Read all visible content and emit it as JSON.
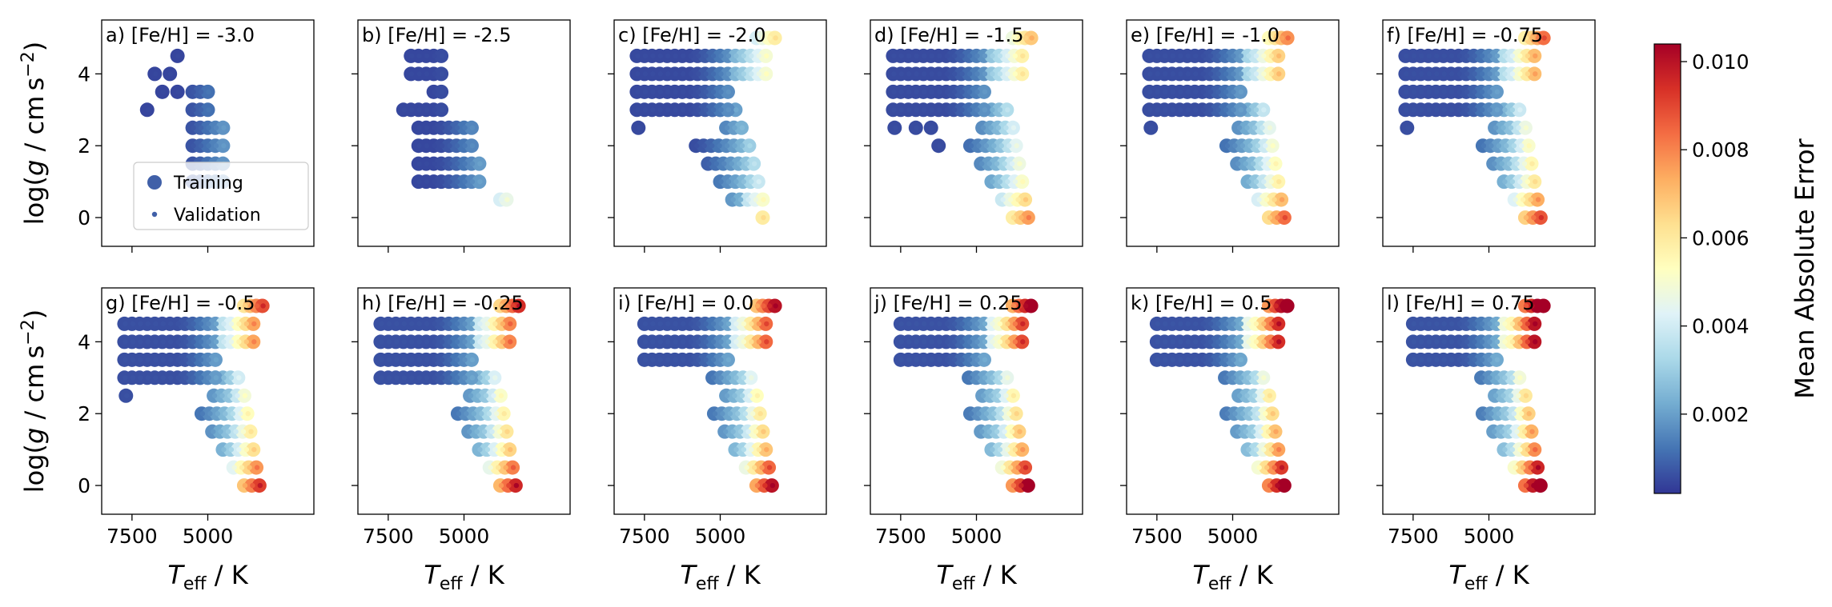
{
  "chart_data": {
    "type": "scatter",
    "xlabel": "T_eff / K",
    "ylabel": "log(g / cm s^-2)",
    "colorbar": {
      "label": "Mean Absolute Error",
      "ticks": [
        "0.002",
        "0.004",
        "0.006",
        "0.008",
        "0.010"
      ],
      "range": [
        0.0002,
        0.0104
      ],
      "colormap": "RdYlBu_r"
    },
    "xlim": [
      8500,
      1500
    ],
    "ylim": [
      5.5,
      -0.8
    ],
    "x_ticks": [
      "7500",
      "5000"
    ],
    "y_ticks": [
      "0",
      "2",
      "4"
    ],
    "legend": {
      "items": [
        "Training",
        "Validation"
      ],
      "panel": 0,
      "placement": "lower-left"
    },
    "panels": [
      {
        "label": "a) [Fe/H] = -3.0",
        "feh": -3.0
      },
      {
        "label": "b) [Fe/H] = -2.5",
        "feh": -2.5
      },
      {
        "label": "c) [Fe/H] = -2.0",
        "feh": -2.0
      },
      {
        "label": "d) [Fe/H] = -1.5",
        "feh": -1.5
      },
      {
        "label": "e) [Fe/H] = -1.0",
        "feh": -1.0
      },
      {
        "label": "f) [Fe/H] = -0.75",
        "feh": -0.75
      },
      {
        "label": "g) [Fe/H] = -0.5",
        "feh": -0.5
      },
      {
        "label": "h) [Fe/H] = -0.25",
        "feh": -0.25
      },
      {
        "label": "i) [Fe/H] = 0.0",
        "feh": 0.0
      },
      {
        "label": "j) [Fe/H] = 0.25",
        "feh": 0.25
      },
      {
        "label": "k) [Fe/H] = 0.5",
        "feh": 0.5
      },
      {
        "label": "l) [Fe/H] = 0.75",
        "feh": 0.75
      }
    ]
  }
}
